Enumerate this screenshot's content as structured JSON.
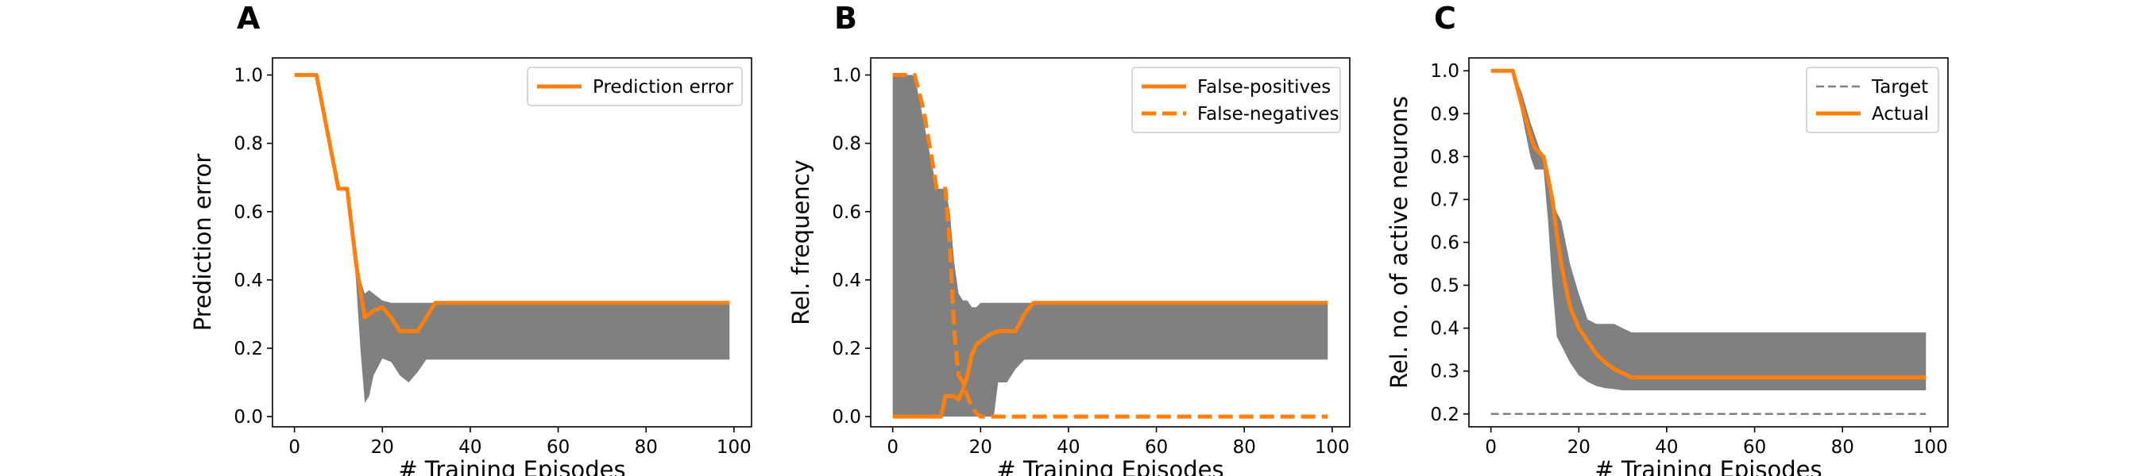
{
  "colors": {
    "orange": "#ff7f0e",
    "band": "#808080",
    "target": "#808080",
    "axis": "#000000"
  },
  "chart_data": [
    {
      "panel": "A",
      "type": "line",
      "xlabel": "# Training Episodes",
      "ylabel": "Prediction error",
      "xlim": [
        -5,
        104
      ],
      "ylim": [
        -0.03,
        1.05
      ],
      "xticks": [
        0,
        20,
        40,
        60,
        80,
        100
      ],
      "yticks": [
        0.0,
        0.2,
        0.4,
        0.6,
        0.8,
        1.0
      ],
      "ytick_labels": [
        "0.0",
        "0.2",
        "0.4",
        "0.6",
        "0.8",
        "1.0"
      ],
      "legend": {
        "position": "top-right"
      },
      "series": [
        {
          "name": "Prediction error",
          "style": "solid",
          "x": [
            0,
            5,
            10,
            12,
            14,
            16,
            18,
            20,
            22,
            24,
            26,
            28,
            30,
            32,
            40,
            60,
            80,
            99
          ],
          "y": [
            1.0,
            1.0,
            0.667,
            0.667,
            0.45,
            0.29,
            0.31,
            0.32,
            0.29,
            0.25,
            0.25,
            0.25,
            0.29,
            0.333,
            0.333,
            0.333,
            0.333,
            0.333
          ]
        }
      ],
      "bands": [
        {
          "x": [
            0,
            5,
            10,
            12,
            14,
            15,
            16,
            17,
            18,
            20,
            22,
            24,
            26,
            28,
            30,
            32,
            40,
            60,
            80,
            99
          ],
          "upper": [
            1.0,
            1.0,
            0.667,
            0.667,
            0.5,
            0.4,
            0.36,
            0.37,
            0.36,
            0.34,
            0.333,
            0.333,
            0.333,
            0.333,
            0.333,
            0.333,
            0.333,
            0.333,
            0.333,
            0.333
          ],
          "lower": [
            1.0,
            1.0,
            0.667,
            0.667,
            0.4,
            0.2,
            0.04,
            0.06,
            0.12,
            0.17,
            0.16,
            0.12,
            0.1,
            0.13,
            0.167,
            0.167,
            0.167,
            0.167,
            0.167,
            0.167
          ]
        }
      ]
    },
    {
      "panel": "B",
      "type": "line",
      "xlabel": "# Training Episodes",
      "ylabel": "Rel. frequency",
      "xlim": [
        -5,
        104
      ],
      "ylim": [
        -0.03,
        1.05
      ],
      "xticks": [
        0,
        20,
        40,
        60,
        80,
        100
      ],
      "yticks": [
        0.0,
        0.2,
        0.4,
        0.6,
        0.8,
        1.0
      ],
      "ytick_labels": [
        "0.0",
        "0.2",
        "0.4",
        "0.6",
        "0.8",
        "1.0"
      ],
      "legend": {
        "position": "top-right"
      },
      "series": [
        {
          "name": "False-positives",
          "style": "solid",
          "x": [
            0,
            10,
            11,
            12,
            13,
            14,
            15,
            16,
            17,
            18,
            19,
            20,
            22,
            24,
            26,
            28,
            30,
            32,
            40,
            60,
            80,
            99
          ],
          "y": [
            0,
            0,
            0,
            0.06,
            0.06,
            0.06,
            0.05,
            0.08,
            0.12,
            0.18,
            0.21,
            0.22,
            0.24,
            0.25,
            0.25,
            0.25,
            0.3,
            0.333,
            0.333,
            0.333,
            0.333,
            0.333
          ]
        },
        {
          "name": "False-negatives",
          "style": "dashed",
          "x": [
            0,
            5,
            7,
            9,
            10,
            11,
            12,
            13,
            14,
            15,
            16,
            17,
            18,
            19,
            20,
            22,
            30,
            40,
            60,
            80,
            99
          ],
          "y": [
            1.0,
            1.0,
            0.9,
            0.75,
            0.667,
            0.667,
            0.667,
            0.5,
            0.25,
            0.12,
            0.1,
            0.06,
            0.03,
            0.01,
            0,
            0,
            0,
            0,
            0,
            0,
            0
          ]
        }
      ],
      "bands": [
        {
          "x": [
            0,
            5,
            10,
            12,
            13,
            14,
            15,
            16,
            17,
            18,
            19,
            20,
            21,
            22,
            23,
            24,
            26,
            28,
            30,
            32,
            40,
            60,
            80,
            99
          ],
          "upper": [
            1.0,
            1.0,
            0.667,
            0.667,
            0.6,
            0.45,
            0.36,
            0.34,
            0.34,
            0.32,
            0.32,
            0.333,
            0.333,
            0.333,
            0.333,
            0.333,
            0.333,
            0.333,
            0.333,
            0.333,
            0.333,
            0.333,
            0.333,
            0.333
          ],
          "lower": [
            0,
            0,
            0,
            0,
            0,
            0,
            0,
            0,
            0,
            0,
            0,
            0,
            0,
            0,
            0,
            0.1,
            0.1,
            0.14,
            0.167,
            0.167,
            0.167,
            0.167,
            0.167,
            0.167
          ]
        }
      ]
    },
    {
      "panel": "C",
      "type": "line",
      "xlabel": "# Training Episodes",
      "ylabel": "Rel. no. of active neurons",
      "xlim": [
        -5,
        104
      ],
      "ylim": [
        0.17,
        1.03
      ],
      "xticks": [
        0,
        20,
        40,
        60,
        80,
        100
      ],
      "yticks": [
        0.2,
        0.3,
        0.4,
        0.5,
        0.6,
        0.7,
        0.8,
        0.9,
        1.0
      ],
      "ytick_labels": [
        "0.2",
        "0.3",
        "0.4",
        "0.5",
        "0.6",
        "0.7",
        "0.8",
        "0.9",
        "1.0"
      ],
      "legend": {
        "position": "top-right"
      },
      "series": [
        {
          "name": "Target",
          "style": "target-dashed",
          "x": [
            0,
            99
          ],
          "y": [
            0.2,
            0.2
          ]
        },
        {
          "name": "Actual",
          "style": "solid",
          "x": [
            0,
            5,
            7,
            9,
            10,
            11,
            12,
            13,
            14,
            15,
            16,
            17,
            18,
            20,
            22,
            24,
            26,
            28,
            30,
            32,
            40,
            60,
            80,
            99
          ],
          "y": [
            1.0,
            1.0,
            0.92,
            0.85,
            0.82,
            0.81,
            0.8,
            0.75,
            0.7,
            0.62,
            0.55,
            0.5,
            0.45,
            0.4,
            0.37,
            0.34,
            0.32,
            0.305,
            0.295,
            0.285,
            0.285,
            0.285,
            0.285,
            0.285
          ]
        }
      ],
      "bands": [
        {
          "x": [
            0,
            5,
            7,
            9,
            10,
            11,
            12,
            13,
            14,
            15,
            16,
            17,
            18,
            20,
            22,
            24,
            26,
            28,
            30,
            32,
            40,
            60,
            80,
            99
          ],
          "upper": [
            1.0,
            1.0,
            0.95,
            0.88,
            0.85,
            0.82,
            0.8,
            0.75,
            0.7,
            0.67,
            0.65,
            0.6,
            0.55,
            0.48,
            0.42,
            0.41,
            0.41,
            0.41,
            0.4,
            0.39,
            0.39,
            0.39,
            0.39,
            0.39
          ],
          "lower": [
            1.0,
            1.0,
            0.9,
            0.8,
            0.77,
            0.77,
            0.77,
            0.65,
            0.5,
            0.38,
            0.36,
            0.34,
            0.32,
            0.29,
            0.275,
            0.265,
            0.26,
            0.258,
            0.255,
            0.255,
            0.255,
            0.255,
            0.255,
            0.255
          ]
        }
      ]
    }
  ]
}
